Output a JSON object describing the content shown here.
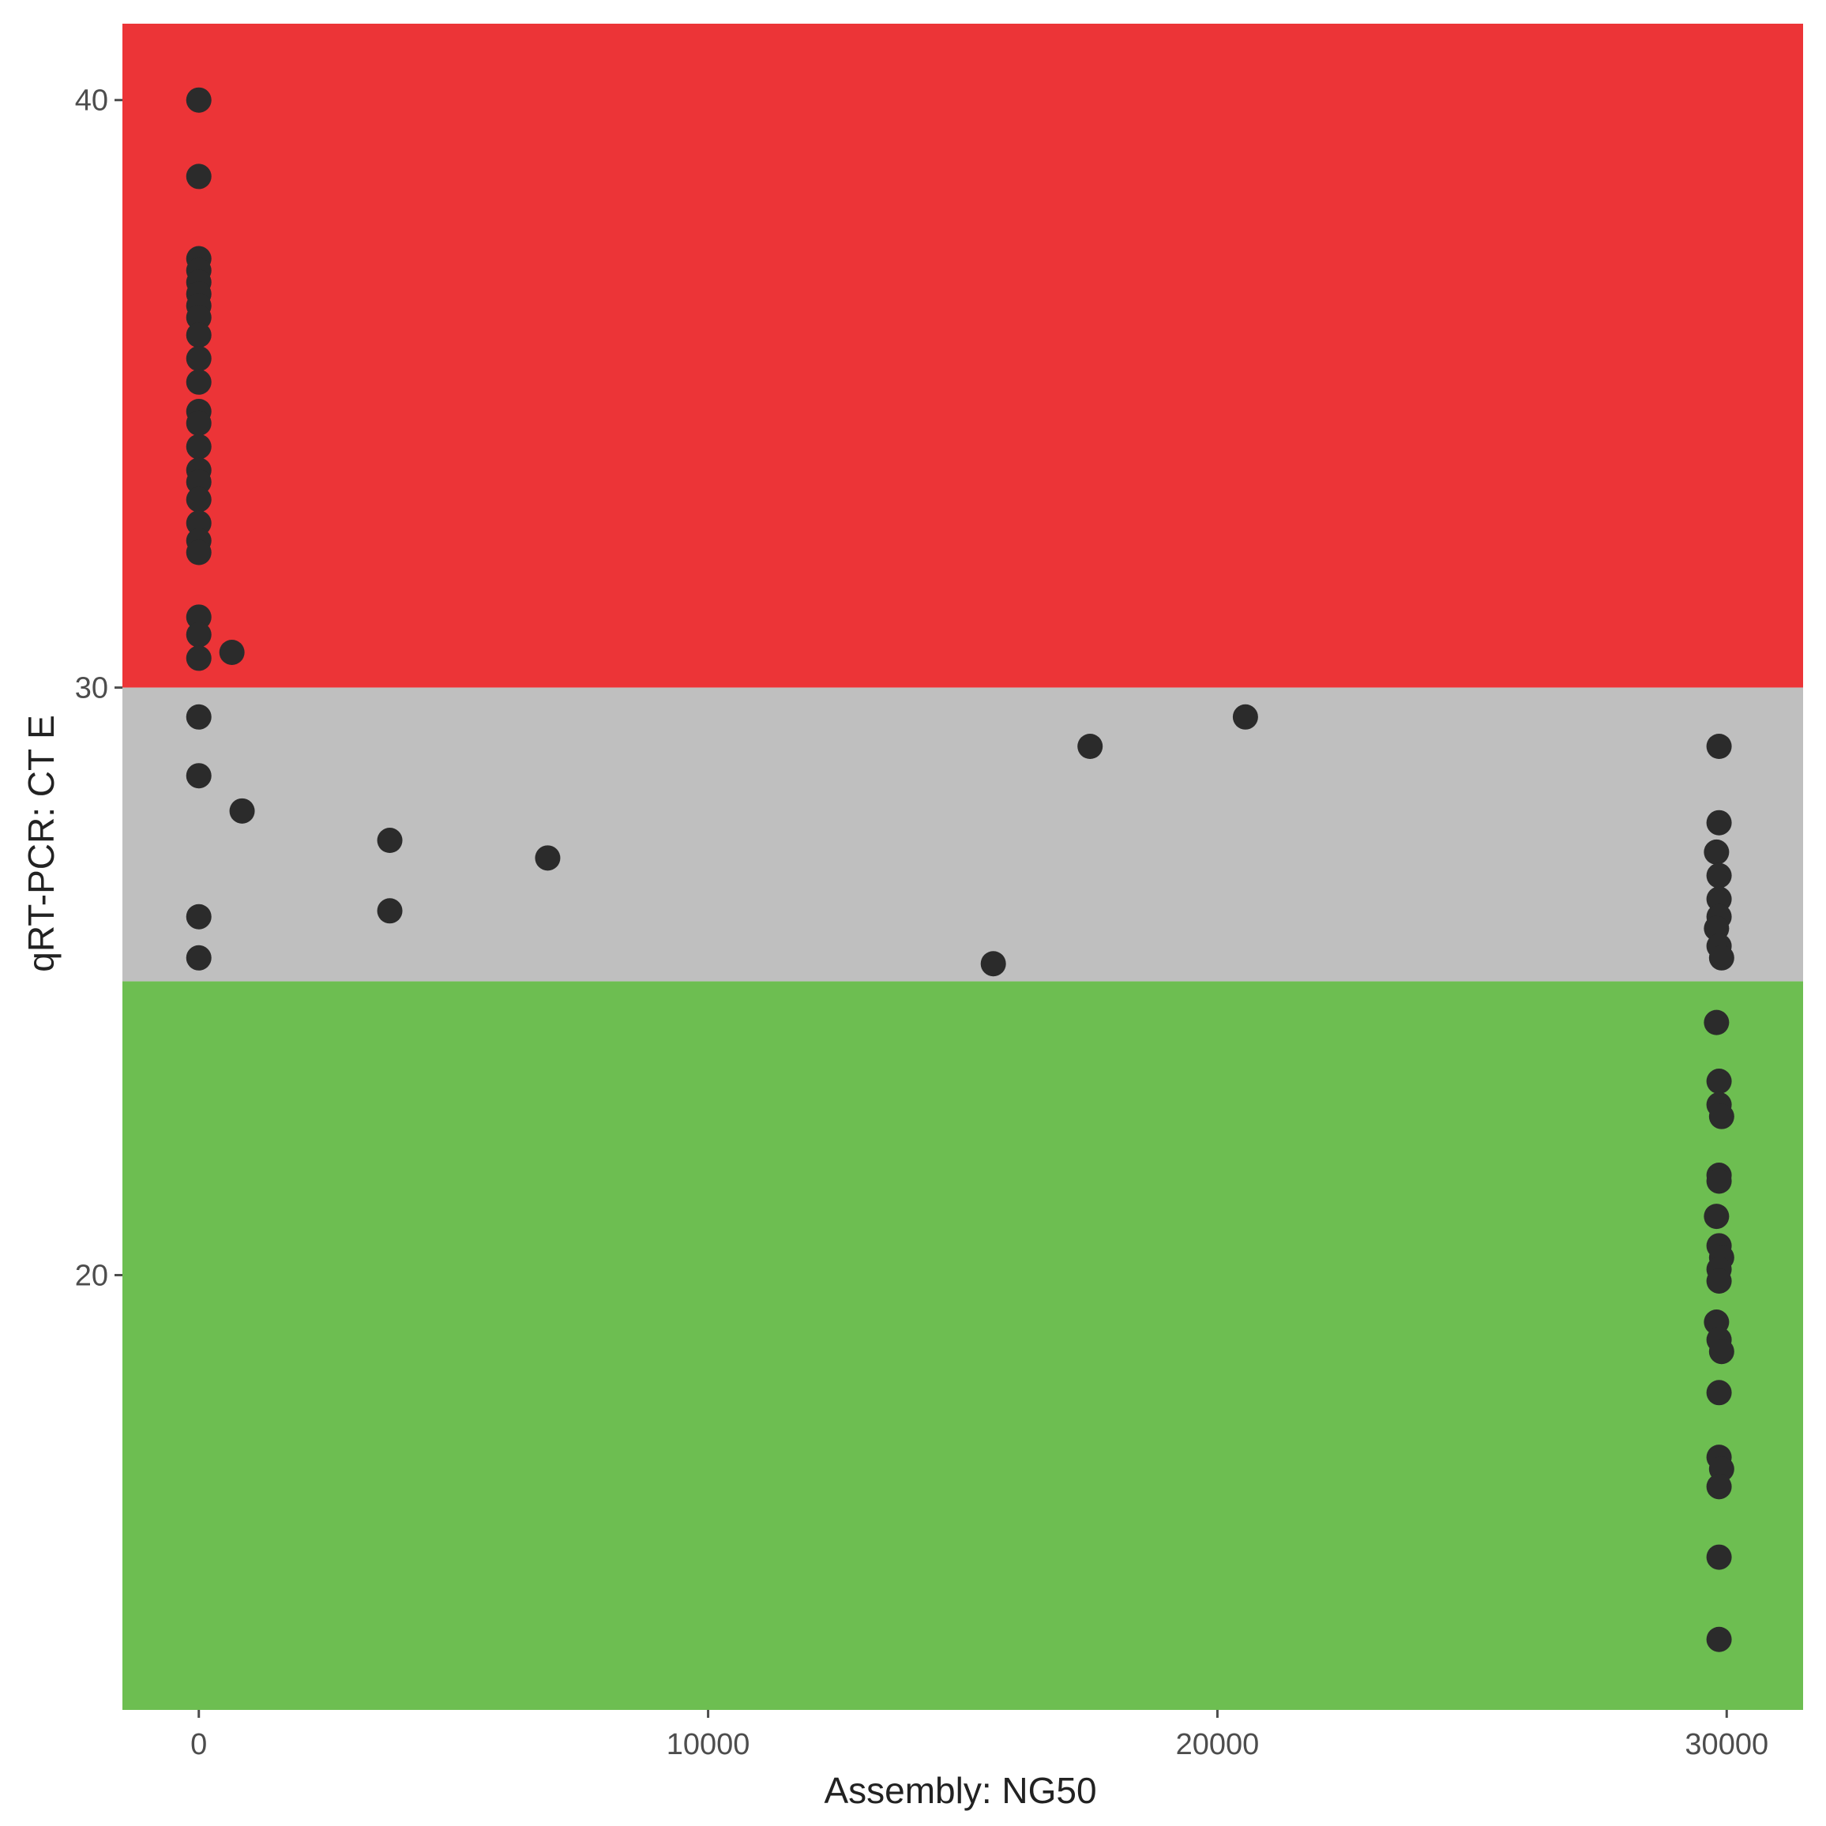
{
  "chart_data": {
    "type": "scatter",
    "title": "",
    "xlabel": "Assembly: NG50",
    "ylabel": "qRT-PCR: CT E",
    "xlim": [
      -1500,
      31500
    ],
    "ylim": [
      12.6,
      41.3
    ],
    "x_ticks": [
      0,
      10000,
      20000,
      30000
    ],
    "y_ticks": [
      20,
      30,
      40
    ],
    "grid": false,
    "legend": "none",
    "point_color": "#2b2b2b",
    "bands": [
      {
        "y_from": 30,
        "y_to": 41.3,
        "color": "#ec3437"
      },
      {
        "y_from": 25,
        "y_to": 30,
        "color": "#bfbfbf"
      },
      {
        "y_from": 12.6,
        "y_to": 25,
        "color": "#6dbe51"
      }
    ],
    "points": [
      {
        "x": 0,
        "y": 40.0
      },
      {
        "x": 0,
        "y": 38.7
      },
      {
        "x": 0,
        "y": 37.3
      },
      {
        "x": 0,
        "y": 37.1
      },
      {
        "x": 0,
        "y": 36.9
      },
      {
        "x": 0,
        "y": 36.7
      },
      {
        "x": 0,
        "y": 36.5
      },
      {
        "x": 0,
        "y": 36.3
      },
      {
        "x": 0,
        "y": 36.0
      },
      {
        "x": 0,
        "y": 35.6
      },
      {
        "x": 0,
        "y": 35.2
      },
      {
        "x": 0,
        "y": 34.7
      },
      {
        "x": 0,
        "y": 34.5
      },
      {
        "x": 0,
        "y": 34.1
      },
      {
        "x": 0,
        "y": 33.7
      },
      {
        "x": 0,
        "y": 33.5
      },
      {
        "x": 0,
        "y": 33.2
      },
      {
        "x": 0,
        "y": 32.8
      },
      {
        "x": 0,
        "y": 32.5
      },
      {
        "x": 0,
        "y": 32.3
      },
      {
        "x": 0,
        "y": 31.2
      },
      {
        "x": 0,
        "y": 30.9
      },
      {
        "x": 0,
        "y": 30.5
      },
      {
        "x": 650,
        "y": 30.6
      },
      {
        "x": 0,
        "y": 29.5
      },
      {
        "x": 0,
        "y": 28.5
      },
      {
        "x": 850,
        "y": 27.9
      },
      {
        "x": 3750,
        "y": 27.4
      },
      {
        "x": 6850,
        "y": 27.1
      },
      {
        "x": 0,
        "y": 26.1
      },
      {
        "x": 3750,
        "y": 26.2
      },
      {
        "x": 0,
        "y": 25.4
      },
      {
        "x": 15600,
        "y": 25.3
      },
      {
        "x": 17500,
        "y": 29.0
      },
      {
        "x": 20550,
        "y": 29.5
      },
      {
        "x": 29850,
        "y": 29.0
      },
      {
        "x": 29850,
        "y": 27.7
      },
      {
        "x": 29800,
        "y": 27.2
      },
      {
        "x": 29850,
        "y": 26.8
      },
      {
        "x": 29850,
        "y": 26.4
      },
      {
        "x": 29850,
        "y": 26.1
      },
      {
        "x": 29800,
        "y": 25.9
      },
      {
        "x": 29850,
        "y": 25.6
      },
      {
        "x": 29900,
        "y": 25.4
      },
      {
        "x": 29800,
        "y": 24.3
      },
      {
        "x": 29850,
        "y": 23.3
      },
      {
        "x": 29850,
        "y": 22.9
      },
      {
        "x": 29900,
        "y": 22.7
      },
      {
        "x": 29850,
        "y": 21.7
      },
      {
        "x": 29850,
        "y": 21.6
      },
      {
        "x": 29800,
        "y": 21.0
      },
      {
        "x": 29850,
        "y": 20.5
      },
      {
        "x": 29900,
        "y": 20.3
      },
      {
        "x": 29850,
        "y": 20.1
      },
      {
        "x": 29850,
        "y": 19.9
      },
      {
        "x": 29800,
        "y": 19.2
      },
      {
        "x": 29850,
        "y": 18.9
      },
      {
        "x": 29900,
        "y": 18.7
      },
      {
        "x": 29850,
        "y": 18.0
      },
      {
        "x": 29850,
        "y": 16.9
      },
      {
        "x": 29900,
        "y": 16.7
      },
      {
        "x": 29850,
        "y": 16.4
      },
      {
        "x": 29850,
        "y": 15.2
      },
      {
        "x": 29850,
        "y": 13.8
      }
    ]
  }
}
